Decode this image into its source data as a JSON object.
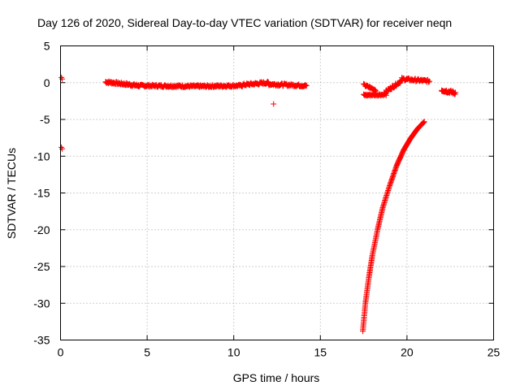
{
  "chart_data": {
    "type": "scatter",
    "title": "Day 126 of 2020, Sidereal Day-to-day VTEC variation (SDTVAR) for receiver neqn",
    "xlabel": "GPS time / hours",
    "ylabel": "SDTVAR / TECUs",
    "xlim": [
      0,
      25
    ],
    "ylim": [
      -35,
      5
    ],
    "x_ticks": [
      0,
      5,
      10,
      15,
      20,
      25
    ],
    "y_ticks": [
      5,
      0,
      -5,
      -10,
      -15,
      -20,
      -25,
      -30,
      -35
    ],
    "x_tick_labels": [
      "0",
      "5",
      "10",
      "15",
      "20",
      "25"
    ],
    "y_tick_labels": [
      "5",
      "0",
      "-5",
      "-10",
      "-15",
      "-20",
      "-25",
      "-30",
      "-35"
    ],
    "grid": true,
    "marker": "+",
    "series": [
      {
        "name": "SDTVAR",
        "color": "#ff0000",
        "points": [
          [
            0.05,
            0.7
          ],
          [
            0.1,
            0.5
          ],
          [
            0.05,
            -8.8
          ],
          [
            0.1,
            -9.0
          ],
          [
            12.3,
            -2.9
          ]
        ],
        "segments": [
          {
            "x": [
              2.6,
              4.5
            ],
            "y": [
              0.1,
              -0.4
            ],
            "spread": 0.35,
            "count": 70
          },
          {
            "x": [
              4.5,
              8.0
            ],
            "y": [
              -0.4,
              -0.5
            ],
            "spread": 0.3,
            "count": 110
          },
          {
            "x": [
              8.0,
              10.5
            ],
            "y": [
              -0.5,
              -0.4
            ],
            "spread": 0.3,
            "count": 80
          },
          {
            "x": [
              10.5,
              12.0
            ],
            "y": [
              -0.3,
              0.0
            ],
            "spread": 0.35,
            "count": 50
          },
          {
            "x": [
              12.0,
              14.2
            ],
            "y": [
              -0.2,
              -0.4
            ],
            "spread": 0.35,
            "count": 70
          },
          {
            "x": [
              17.5,
              18.8
            ],
            "y": [
              -1.7,
              -1.6
            ],
            "spread": 0.3,
            "count": 40
          },
          {
            "x": [
              17.5,
              18.2
            ],
            "y": [
              -0.3,
              -1.0
            ],
            "spread": 0.3,
            "count": 25
          },
          {
            "x": [
              18.8,
              19.7
            ],
            "y": [
              -1.2,
              0.3
            ],
            "spread": 0.4,
            "count": 35
          },
          {
            "x": [
              19.7,
              21.3
            ],
            "y": [
              0.5,
              0.2
            ],
            "spread": 0.35,
            "count": 50
          },
          {
            "x": [
              22.0,
              22.8
            ],
            "y": [
              -1.0,
              -1.4
            ],
            "spread": 0.45,
            "count": 35
          }
        ],
        "curve": {
          "x": [
            17.45,
            17.6,
            17.8,
            18.0,
            18.3,
            18.6,
            19.0,
            19.4,
            19.8,
            20.2,
            20.6,
            21.0
          ],
          "y": [
            -33.8,
            -30.0,
            -26.5,
            -23.5,
            -20.0,
            -17.0,
            -14.0,
            -11.3,
            -9.2,
            -7.6,
            -6.3,
            -5.3
          ]
        }
      }
    ]
  }
}
